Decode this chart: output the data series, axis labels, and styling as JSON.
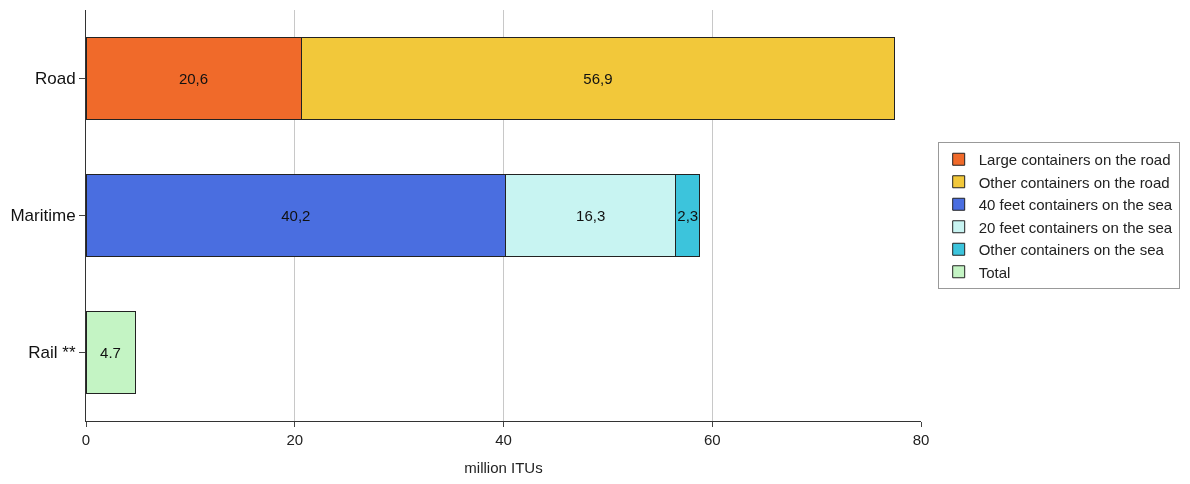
{
  "chart_data": {
    "type": "bar",
    "orientation": "horizontal",
    "stacked": true,
    "xlabel": "million ITUs",
    "categories": [
      "Road",
      "Maritime",
      "Rail **"
    ],
    "series": [
      {
        "name": "Large containers on the road",
        "color": "#f06a2a",
        "values": [
          20.6,
          null,
          null
        ],
        "value_labels": [
          "20,6",
          null,
          null
        ]
      },
      {
        "name": "Other containers on the road",
        "color": "#f2c83a",
        "values": [
          56.9,
          null,
          null
        ],
        "value_labels": [
          "56,9",
          null,
          null
        ]
      },
      {
        "name": "40 feet containers on the sea",
        "color": "#4a6ee0",
        "values": [
          null,
          40.2,
          null
        ],
        "value_labels": [
          null,
          "40,2",
          null
        ]
      },
      {
        "name": "20 feet containers on the sea",
        "color": "#c8f4f2",
        "values": [
          null,
          16.3,
          null
        ],
        "value_labels": [
          null,
          "16,3",
          null
        ]
      },
      {
        "name": "Other containers on the sea",
        "color": "#3cc4dc",
        "values": [
          null,
          2.3,
          null
        ],
        "value_labels": [
          null,
          "2,3",
          null
        ]
      },
      {
        "name": "Total",
        "color": "#c4f4c4",
        "values": [
          null,
          null,
          4.7
        ],
        "value_labels": [
          null,
          null,
          "4.7"
        ]
      }
    ],
    "xlim": [
      0,
      80
    ],
    "xticks": [
      0,
      20,
      40,
      60,
      80
    ],
    "grid": "x",
    "legend": "right"
  }
}
